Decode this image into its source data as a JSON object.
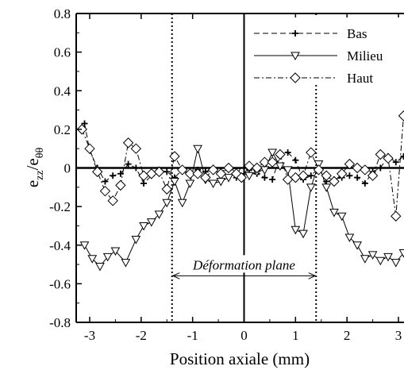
{
  "chart_data": {
    "type": "line",
    "xlabel": "Position axiale (mm)",
    "ylabel_main": "e",
    "ylabel_main_sub": "zz",
    "ylabel_sep": "/e",
    "ylabel_den_sub": "θθ",
    "xlim": [
      -3.2,
      3.2
    ],
    "ylim": [
      -0.8,
      0.8
    ],
    "xticks": [
      -3,
      -2,
      -1,
      0,
      1,
      2,
      3
    ],
    "yticks": [
      0.8,
      0.6,
      0.4,
      0.2,
      0,
      -0.2,
      -0.4,
      -0.6,
      -0.8
    ],
    "ytick_labels": [
      "0.8",
      "0.6",
      "0.4",
      "0.2",
      "0",
      "-0.2",
      "-0.4",
      "-0.6",
      "-0.8"
    ],
    "grid": false,
    "legend_position": "top-right",
    "vertical_lines": [
      -1.4,
      0,
      1.4
    ],
    "annotation": {
      "text": "Déformation plane",
      "x_from": -1.4,
      "x_to": 1.4,
      "y": -0.6
    },
    "series": [
      {
        "name": "Bas",
        "line": "dashed",
        "marker": "plus",
        "x": [
          -3.1,
          -3.0,
          -2.85,
          -2.7,
          -2.55,
          -2.4,
          -2.25,
          -2.1,
          -1.95,
          -1.8,
          -1.65,
          -1.5,
          -1.35,
          -1.2,
          -1.05,
          -0.9,
          -0.75,
          -0.6,
          -0.45,
          -0.3,
          -0.15,
          0.1,
          0.25,
          0.4,
          0.55,
          0.7,
          0.85,
          1.0,
          1.15,
          1.3,
          1.45,
          1.6,
          1.75,
          1.9,
          2.05,
          2.2,
          2.35,
          2.5,
          2.65,
          2.8,
          2.95,
          3.1
        ],
        "y": [
          0.23,
          0.09,
          0.0,
          -0.07,
          -0.04,
          -0.03,
          0.02,
          0.0,
          -0.08,
          -0.04,
          -0.01,
          -0.02,
          -0.05,
          -0.01,
          -0.04,
          -0.01,
          -0.02,
          0.0,
          -0.02,
          0.0,
          -0.05,
          -0.01,
          -0.03,
          -0.05,
          -0.06,
          0.06,
          0.08,
          0.04,
          -0.06,
          -0.04,
          0.0,
          -0.07,
          -0.06,
          -0.05,
          -0.04,
          -0.05,
          -0.08,
          -0.02,
          0.0,
          0.06,
          0.03,
          0.06
        ]
      },
      {
        "name": "Milieu",
        "line": "solid",
        "marker": "triangle-down",
        "x": [
          -3.1,
          -2.95,
          -2.8,
          -2.65,
          -2.5,
          -2.3,
          -2.1,
          -1.95,
          -1.8,
          -1.65,
          -1.5,
          -1.35,
          -1.2,
          -1.05,
          -0.9,
          -0.75,
          -0.6,
          -0.45,
          -0.3,
          -0.15,
          0.1,
          0.25,
          0.4,
          0.55,
          0.7,
          0.85,
          1.0,
          1.15,
          1.3,
          1.45,
          1.6,
          1.75,
          1.9,
          2.05,
          2.2,
          2.35,
          2.5,
          2.65,
          2.8,
          2.95,
          3.1
        ],
        "y": [
          -0.4,
          -0.47,
          -0.51,
          -0.46,
          -0.43,
          -0.49,
          -0.37,
          -0.3,
          -0.28,
          -0.24,
          -0.18,
          -0.07,
          -0.18,
          -0.08,
          0.1,
          -0.06,
          -0.08,
          -0.07,
          -0.05,
          -0.02,
          -0.04,
          -0.02,
          -0.01,
          0.08,
          0.01,
          -0.01,
          -0.32,
          -0.34,
          -0.1,
          0.02,
          -0.1,
          -0.23,
          -0.25,
          -0.36,
          -0.4,
          -0.47,
          -0.45,
          -0.48,
          -0.46,
          -0.49,
          -0.44
        ]
      },
      {
        "name": "Haut",
        "line": "dash-dot",
        "marker": "diamond",
        "x": [
          -3.15,
          -3.0,
          -2.85,
          -2.7,
          -2.55,
          -2.4,
          -2.25,
          -2.1,
          -1.95,
          -1.8,
          -1.65,
          -1.5,
          -1.35,
          -1.2,
          -1.05,
          -0.9,
          -0.75,
          -0.6,
          -0.45,
          -0.3,
          -0.15,
          -0.05,
          0.1,
          0.25,
          0.4,
          0.55,
          0.7,
          0.85,
          1.0,
          1.15,
          1.3,
          1.45,
          1.6,
          1.75,
          1.9,
          2.05,
          2.2,
          2.35,
          2.5,
          2.65,
          2.8,
          2.95,
          3.1
        ],
        "y": [
          0.2,
          0.1,
          -0.02,
          -0.12,
          -0.17,
          -0.09,
          0.13,
          0.1,
          -0.04,
          -0.03,
          -0.02,
          -0.11,
          0.06,
          -0.01,
          -0.03,
          -0.03,
          -0.05,
          -0.01,
          -0.03,
          0.0,
          -0.03,
          -0.05,
          0.01,
          0.0,
          0.03,
          0.03,
          0.07,
          -0.06,
          -0.05,
          -0.04,
          0.08,
          -0.01,
          -0.04,
          -0.07,
          -0.03,
          0.02,
          0.0,
          -0.01,
          -0.04,
          0.07,
          0.05,
          -0.25,
          0.27
        ]
      }
    ]
  }
}
